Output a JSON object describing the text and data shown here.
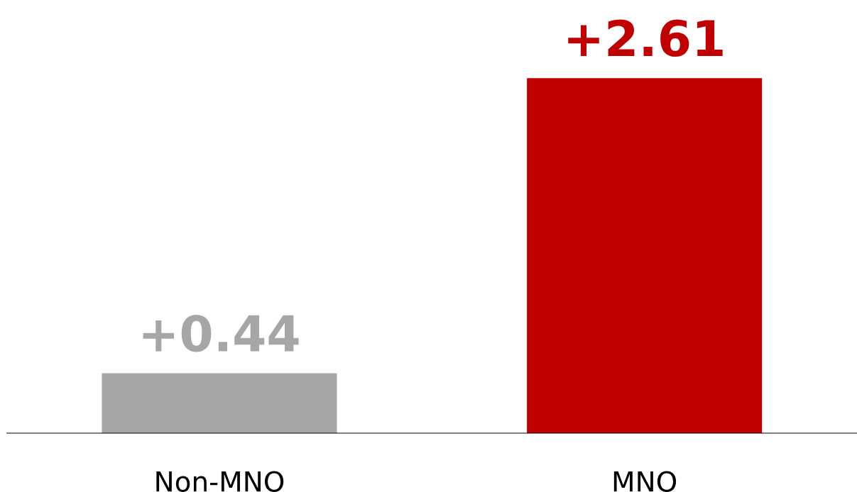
{
  "chart_data": {
    "type": "bar",
    "categories": [
      "Non-MNO",
      "MNO"
    ],
    "values": [
      0.44,
      2.61
    ],
    "colors": [
      "#a6a6a6",
      "#c00000"
    ],
    "value_labels": [
      "+0.44",
      "+2.61"
    ],
    "grid": false,
    "legend": false,
    "tick_labels": "x"
  }
}
